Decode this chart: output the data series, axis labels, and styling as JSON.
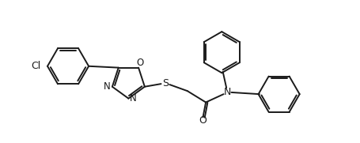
{
  "bg_color": "#ffffff",
  "line_color": "#1a1a1a",
  "line_width": 1.4,
  "font_size": 8.5,
  "figsize": [
    4.55,
    1.81
  ],
  "dpi": 100,
  "xlim": [
    0,
    10
  ],
  "ylim": [
    0,
    4
  ],
  "hex_r": 0.58,
  "pent_r": 0.48
}
